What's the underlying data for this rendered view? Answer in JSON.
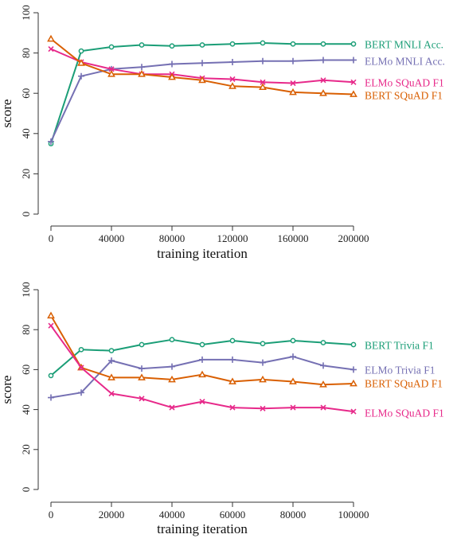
{
  "chart_data": [
    {
      "type": "line",
      "xlabel": "training iteration",
      "ylabel": "score",
      "xlim": [
        0,
        200000
      ],
      "ylim": [
        0,
        100
      ],
      "xticks": [
        0,
        40000,
        80000,
        120000,
        160000,
        200000
      ],
      "xtick_labels": [
        "0",
        "40000",
        "80000",
        "120000",
        "160000",
        "200000"
      ],
      "yticks": [
        0,
        20,
        40,
        60,
        80,
        100
      ],
      "ytick_labels": [
        "0",
        "20",
        "40",
        "60",
        "80",
        "100"
      ],
      "grid": false,
      "legend_placement": "right",
      "x": [
        0,
        20000,
        40000,
        60000,
        80000,
        100000,
        120000,
        140000,
        160000,
        180000,
        200000
      ],
      "series": [
        {
          "name": "BERT MNLI Acc.",
          "color": "#1b9e77",
          "marker": "circle",
          "values": [
            35,
            81,
            83,
            84,
            83.5,
            84,
            84.5,
            85,
            84.5,
            84.5,
            84.5
          ]
        },
        {
          "name": "ELMo MNLI Acc.",
          "color": "#7570b3",
          "marker": "plus",
          "values": [
            36,
            68.5,
            72,
            73,
            74.5,
            75,
            75.5,
            76,
            76,
            76.5,
            76.5
          ]
        },
        {
          "name": "ELMo SQuAD F1",
          "color": "#e7298a",
          "marker": "cross",
          "values": [
            82,
            75.5,
            72,
            69.5,
            69.5,
            67.5,
            67,
            65.5,
            65,
            66.5,
            65.5
          ]
        },
        {
          "name": "BERT SQuAD F1",
          "color": "#d95f02",
          "marker": "triangle",
          "values": [
            87,
            75,
            69.5,
            69.5,
            68,
            66.5,
            63.5,
            63,
            60.5,
            60,
            59.5
          ]
        }
      ]
    },
    {
      "type": "line",
      "xlabel": "training iteration",
      "ylabel": "score",
      "xlim": [
        0,
        100000
      ],
      "ylim": [
        0,
        100
      ],
      "xticks": [
        0,
        20000,
        40000,
        60000,
        80000,
        100000
      ],
      "xtick_labels": [
        "0",
        "20000",
        "40000",
        "60000",
        "80000",
        "100000"
      ],
      "yticks": [
        0,
        20,
        40,
        60,
        80,
        100
      ],
      "ytick_labels": [
        "0",
        "20",
        "40",
        "60",
        "80",
        "100"
      ],
      "grid": false,
      "legend_placement": "right",
      "x": [
        0,
        10000,
        20000,
        30000,
        40000,
        50000,
        60000,
        70000,
        80000,
        90000,
        100000
      ],
      "series": [
        {
          "name": "BERT Trivia F1",
          "color": "#1b9e77",
          "marker": "circle",
          "values": [
            57,
            70,
            69.5,
            72.5,
            75,
            72.5,
            74.5,
            73,
            74.5,
            73.5,
            72.5
          ]
        },
        {
          "name": "ELMo Trivia F1",
          "color": "#7570b3",
          "marker": "plus",
          "values": [
            46,
            48.5,
            64.5,
            60.5,
            61.5,
            65,
            65,
            63.5,
            66.5,
            62,
            60
          ]
        },
        {
          "name": "BERT SQuAD F1",
          "color": "#d95f02",
          "marker": "triangle",
          "values": [
            87,
            61,
            56,
            56,
            55,
            57.5,
            54,
            55,
            54,
            52.5,
            53
          ]
        },
        {
          "name": "ELMo SQuAD F1",
          "color": "#e7298a",
          "marker": "cross",
          "values": [
            82,
            61,
            48,
            45.5,
            41,
            44,
            41,
            40.5,
            41,
            41,
            39
          ]
        }
      ]
    }
  ]
}
